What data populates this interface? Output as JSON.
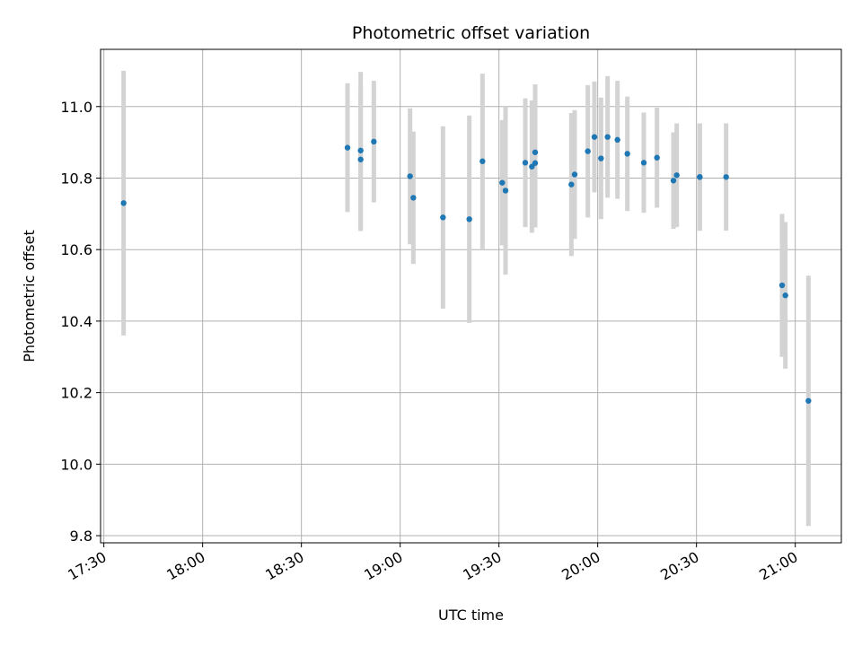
{
  "chart_data": {
    "type": "scatter",
    "title": "Photometric offset variation",
    "xlabel": "UTC time",
    "ylabel": "Photometric offset",
    "x_tick_labels": [
      "17:30",
      "18:00",
      "18:30",
      "19:00",
      "19:30",
      "20:00",
      "20:30",
      "21:00"
    ],
    "y_tick_labels": [
      "9.8",
      "10.0",
      "10.2",
      "10.4",
      "10.6",
      "10.8",
      "11.0"
    ],
    "x_axis_type": "time",
    "xlim": [
      "17:29",
      "21:14"
    ],
    "ylim": [
      9.78,
      11.16
    ],
    "grid": true,
    "colors": {
      "point": "#1f77b4",
      "errorbar": "#d3d3d3",
      "grid": "#b0b0b0"
    },
    "points": [
      {
        "x": "17:36",
        "y": 10.73,
        "err": 0.37
      },
      {
        "x": "18:44",
        "y": 10.885,
        "err": 0.18
      },
      {
        "x": "18:48",
        "y": 10.877,
        "err": 0.22
      },
      {
        "x": "18:48",
        "y": 10.852,
        "err": 0.2
      },
      {
        "x": "18:52",
        "y": 10.902,
        "err": 0.17
      },
      {
        "x": "19:03",
        "y": 10.805,
        "err": 0.19
      },
      {
        "x": "19:04",
        "y": 10.745,
        "err": 0.185
      },
      {
        "x": "19:13",
        "y": 10.69,
        "err": 0.255
      },
      {
        "x": "19:21",
        "y": 10.685,
        "err": 0.29
      },
      {
        "x": "19:25",
        "y": 10.847,
        "err": 0.245
      },
      {
        "x": "19:31",
        "y": 10.787,
        "err": 0.175
      },
      {
        "x": "19:32",
        "y": 10.765,
        "err": 0.235
      },
      {
        "x": "19:38",
        "y": 10.843,
        "err": 0.18
      },
      {
        "x": "19:40",
        "y": 10.832,
        "err": 0.185
      },
      {
        "x": "19:41",
        "y": 10.872,
        "err": 0.19
      },
      {
        "x": "19:41",
        "y": 10.842,
        "err": 0.18
      },
      {
        "x": "19:52",
        "y": 10.782,
        "err": 0.2
      },
      {
        "x": "19:53",
        "y": 10.81,
        "err": 0.18
      },
      {
        "x": "19:57",
        "y": 10.875,
        "err": 0.185
      },
      {
        "x": "19:59",
        "y": 10.915,
        "err": 0.155
      },
      {
        "x": "20:01",
        "y": 10.855,
        "err": 0.17
      },
      {
        "x": "20:03",
        "y": 10.915,
        "err": 0.17
      },
      {
        "x": "20:06",
        "y": 10.907,
        "err": 0.165
      },
      {
        "x": "20:09",
        "y": 10.868,
        "err": 0.16
      },
      {
        "x": "20:14",
        "y": 10.843,
        "err": 0.14
      },
      {
        "x": "20:18",
        "y": 10.857,
        "err": 0.14
      },
      {
        "x": "20:23",
        "y": 10.793,
        "err": 0.135
      },
      {
        "x": "20:24",
        "y": 10.808,
        "err": 0.145
      },
      {
        "x": "20:31",
        "y": 10.803,
        "err": 0.15
      },
      {
        "x": "20:31",
        "y": 10.803,
        "err": 0.15
      },
      {
        "x": "20:39",
        "y": 10.803,
        "err": 0.15
      },
      {
        "x": "20:56",
        "y": 10.5,
        "err": 0.2
      },
      {
        "x": "20:57",
        "y": 10.472,
        "err": 0.205
      },
      {
        "x": "21:04",
        "y": 10.177,
        "err": 0.35
      }
    ]
  }
}
